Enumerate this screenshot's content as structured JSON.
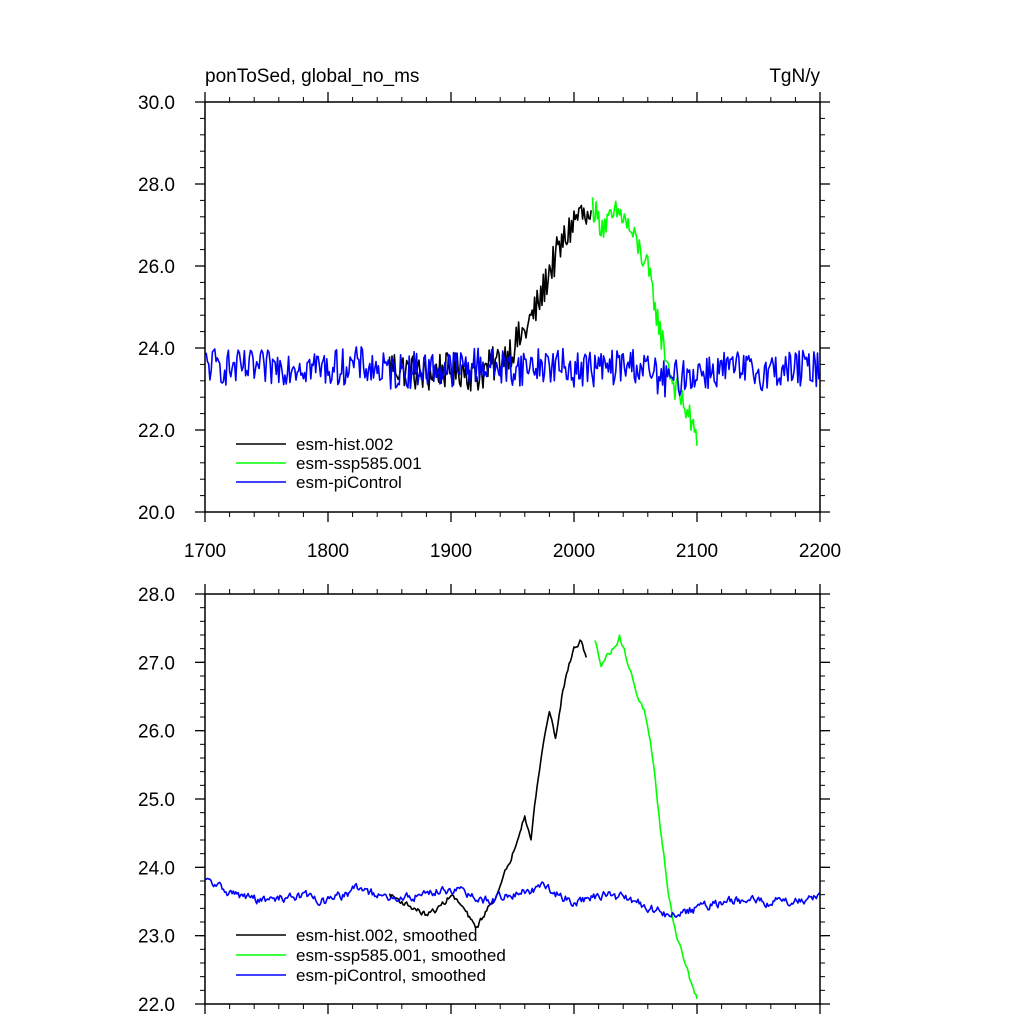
{
  "chart_data": [
    {
      "type": "line",
      "title": "ponToSed, global_no_ms",
      "units": "TgN/y",
      "xlim": [
        1700,
        2200
      ],
      "ylim": [
        20.0,
        30.0
      ],
      "xticks": [
        "1700",
        "1800",
        "1900",
        "2000",
        "2100",
        "2200"
      ],
      "yticks": [
        "20.0",
        "22.0",
        "24.0",
        "26.0",
        "28.0",
        "30.0"
      ],
      "legend": "bottom-left",
      "colors": {
        "hist": "#000000",
        "ssp": "#00ff00",
        "ctrl": "#0000ff"
      },
      "series": [
        {
          "name": "esm-hist.002",
          "color": "#000000",
          "x": [
            1850,
            1860,
            1870,
            1880,
            1890,
            1900,
            1910,
            1920,
            1930,
            1940,
            1950,
            1960,
            1970,
            1975,
            1980,
            1985,
            1990,
            1995,
            2000,
            2005,
            2010,
            2014
          ],
          "y": [
            23.6,
            23.5,
            23.4,
            23.3,
            23.5,
            23.4,
            23.5,
            23.3,
            23.5,
            23.7,
            24.0,
            24.4,
            25.0,
            25.4,
            25.9,
            26.2,
            26.5,
            26.8,
            27.1,
            27.3,
            27.1,
            27.0
          ]
        },
        {
          "name": "esm-ssp585.001",
          "color": "#00ff00",
          "x": [
            2015,
            2020,
            2025,
            2030,
            2035,
            2040,
            2045,
            2050,
            2055,
            2060,
            2065,
            2070,
            2075,
            2080,
            2085,
            2090,
            2095,
            2100
          ],
          "y": [
            27.5,
            27.1,
            27.0,
            27.1,
            27.3,
            27.2,
            26.9,
            26.6,
            26.3,
            25.9,
            25.2,
            24.4,
            23.8,
            23.2,
            22.9,
            22.6,
            22.2,
            21.7
          ]
        },
        {
          "name": "esm-piControl",
          "color": "#0000ff",
          "x": [
            1700,
            1725,
            1750,
            1775,
            1800,
            1825,
            1850,
            1875,
            1900,
            1925,
            1950,
            1975,
            2000,
            2025,
            2050,
            2075,
            2100,
            2125,
            2150,
            2175,
            2200
          ],
          "y": [
            23.6,
            23.5,
            23.5,
            23.6,
            23.5,
            23.6,
            23.4,
            23.5,
            23.5,
            23.6,
            23.5,
            23.6,
            23.5,
            23.5,
            23.6,
            23.2,
            23.4,
            23.5,
            23.4,
            23.5,
            23.5
          ]
        }
      ]
    },
    {
      "type": "line",
      "xlim": [
        1700,
        2200
      ],
      "ylim": [
        22.0,
        28.0
      ],
      "yticks": [
        "22.0",
        "23.0",
        "24.0",
        "25.0",
        "26.0",
        "27.0",
        "28.0"
      ],
      "legend": "bottom-left",
      "series": [
        {
          "name": "esm-hist.002, smoothed",
          "color": "#000000",
          "x": [
            1850,
            1860,
            1870,
            1880,
            1890,
            1900,
            1910,
            1920,
            1930,
            1940,
            1950,
            1955,
            1960,
            1965,
            1970,
            1975,
            1980,
            1985,
            1990,
            1995,
            2000,
            2005,
            2010
          ],
          "y": [
            23.6,
            23.5,
            23.4,
            23.3,
            23.4,
            23.6,
            23.4,
            23.1,
            23.4,
            23.7,
            24.2,
            24.5,
            24.8,
            24.4,
            25.2,
            25.8,
            26.3,
            25.9,
            26.5,
            26.9,
            27.2,
            27.3,
            27.1
          ]
        },
        {
          "name": "esm-ssp585.001, smoothed",
          "color": "#00ff00",
          "x": [
            2017,
            2022,
            2027,
            2032,
            2037,
            2042,
            2047,
            2052,
            2057,
            2062,
            2067,
            2072,
            2077,
            2082,
            2087,
            2092,
            2097,
            2100
          ],
          "y": [
            27.3,
            27.0,
            27.1,
            27.2,
            27.4,
            27.1,
            26.8,
            26.5,
            26.3,
            25.8,
            25.1,
            24.3,
            23.6,
            23.1,
            22.8,
            22.5,
            22.2,
            22.1
          ]
        },
        {
          "name": "esm-piControl, smoothed",
          "color": "#0000ff",
          "x": [
            1700,
            1725,
            1750,
            1775,
            1800,
            1825,
            1850,
            1875,
            1900,
            1925,
            1950,
            1975,
            2000,
            2025,
            2050,
            2075,
            2100,
            2125,
            2150,
            2175,
            2200
          ],
          "y": [
            23.8,
            23.6,
            23.5,
            23.6,
            23.5,
            23.7,
            23.5,
            23.6,
            23.7,
            23.5,
            23.6,
            23.7,
            23.5,
            23.6,
            23.5,
            23.3,
            23.4,
            23.5,
            23.5,
            23.5,
            23.6
          ]
        }
      ]
    }
  ]
}
